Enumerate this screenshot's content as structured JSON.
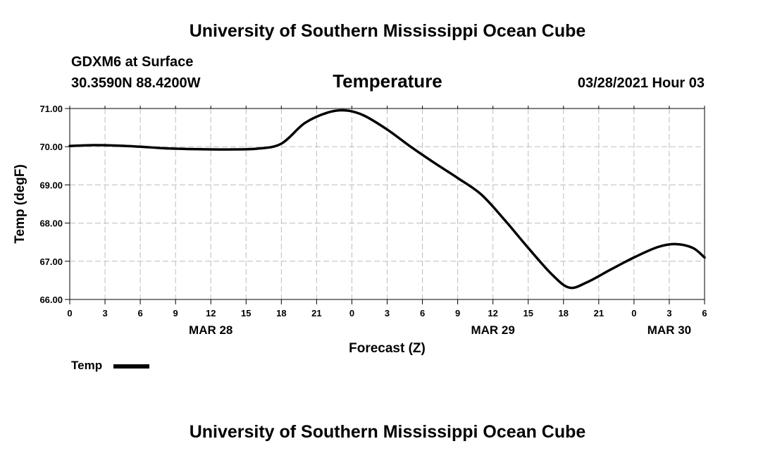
{
  "header": {
    "title_top": "University of Southern Mississippi Ocean Cube",
    "station": "GDXM6 at Surface",
    "coords": "30.3590N  88.4200W",
    "datetime": "03/28/2021 Hour 03",
    "title_bottom": "University of Southern Mississippi Ocean Cube"
  },
  "chart_data": {
    "type": "line",
    "title": "Temperature",
    "xlabel": "Forecast (Z)",
    "ylabel": "Temp (degF)",
    "ylim": [
      66.0,
      71.0
    ],
    "xlim": [
      0,
      54
    ],
    "y_ticks": [
      "66.00",
      "67.00",
      "68.00",
      "69.00",
      "70.00",
      "71.00"
    ],
    "x_tick_labels": [
      "0",
      "3",
      "6",
      "9",
      "12",
      "15",
      "18",
      "21",
      "0",
      "3",
      "6",
      "9",
      "12",
      "15",
      "18",
      "21",
      "0",
      "3",
      "6"
    ],
    "date_labels": [
      {
        "label": "MAR 28",
        "hour": 12
      },
      {
        "label": "MAR 29",
        "hour": 36
      },
      {
        "label": "MAR 30",
        "hour": 51
      }
    ],
    "grid": true,
    "series": [
      {
        "name": "Temp",
        "x": [
          0,
          2,
          4,
          6,
          8,
          10,
          12,
          14,
          16,
          18,
          20,
          22,
          23.5,
          25,
          27,
          29,
          31,
          33,
          35,
          37,
          39,
          41,
          42.5,
          44,
          46,
          48,
          50,
          51.5,
          53,
          54
        ],
        "values": [
          70.02,
          70.04,
          70.03,
          70.0,
          69.96,
          69.94,
          69.93,
          69.93,
          69.95,
          70.08,
          70.62,
          70.9,
          70.95,
          70.82,
          70.45,
          70.0,
          69.58,
          69.18,
          68.75,
          68.08,
          67.35,
          66.66,
          66.31,
          66.45,
          66.78,
          67.1,
          67.37,
          67.45,
          67.35,
          67.1
        ]
      }
    ]
  },
  "legend": {
    "label": "Temp"
  }
}
